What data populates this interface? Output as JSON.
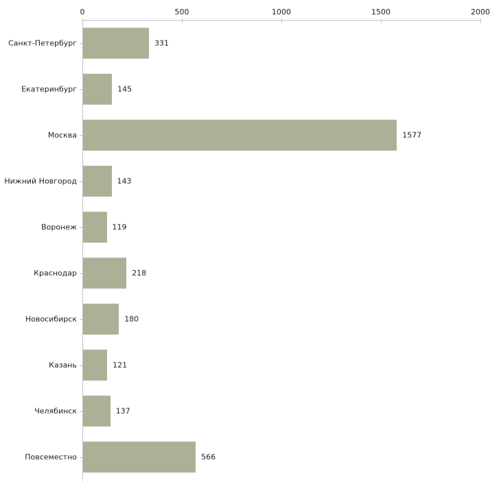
{
  "chart_data": {
    "type": "bar",
    "orientation": "horizontal",
    "title": "",
    "xlabel": "",
    "ylabel": "",
    "categories": [
      "Санкт-Петербург",
      "Екатеринбург",
      "Москва",
      "Нижний Новгород",
      "Воронеж",
      "Краснодар",
      "Новосибирск",
      "Казань",
      "Челябинск",
      "Повсеместно"
    ],
    "values": [
      331,
      145,
      1577,
      143,
      119,
      218,
      180,
      121,
      137,
      566
    ],
    "value_labels": [
      "331",
      "145",
      "1577",
      "143",
      "119",
      "218",
      "180",
      "121",
      "137",
      "566"
    ],
    "xlim": [
      0,
      2000
    ],
    "xticks": [
      0,
      500,
      1000,
      1500,
      2000
    ],
    "xtick_labels": [
      "0",
      "500",
      "1000",
      "1500",
      "2000"
    ],
    "axis_position": "top",
    "grid": false,
    "legend": false,
    "colors": {
      "bar_fill": "#abb096",
      "axis_line": "#bdbdbd",
      "tick_mark": "#c9c99b",
      "text": "#1f1f1f",
      "background": "#ffffff"
    }
  }
}
